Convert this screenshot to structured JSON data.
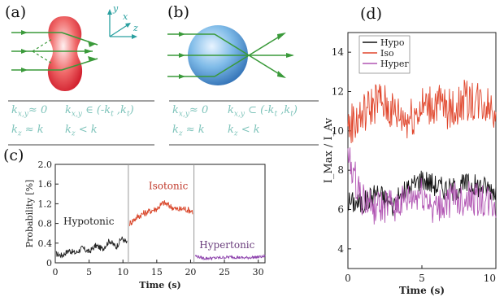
{
  "panels": {
    "a": {
      "label": "(a)",
      "axes": {
        "y": "y",
        "x": "x",
        "z": "z"
      },
      "row1": {
        "left": "k",
        "left_sub": "x,y",
        "left_rel": "≈ 0",
        "right": "k",
        "right_sub": "x,y",
        "right_rel": "∈ (-k",
        "right_sub2": "t",
        "right_mid": " ,k",
        "right_sub3": "t",
        "right_end": ")"
      },
      "row2": {
        "left": "k",
        "left_sub": "z",
        "left_rel": " ≈ k",
        "right": "k",
        "right_sub": "z",
        "right_rel": " < k"
      }
    },
    "b": {
      "label": "(b)",
      "row1": {
        "left": "k",
        "left_sub": "x,y",
        "left_rel": "≈ 0",
        "right": "k",
        "right_sub": "x,y",
        "right_rel": "⊂ (-k",
        "right_sub2": "t",
        "right_mid": " ,k",
        "right_sub3": "t",
        "right_end": ")"
      },
      "row2": {
        "left": "k",
        "left_sub": "z",
        "left_rel": " ≈ k",
        "right": "k",
        "right_sub": "z",
        "right_rel": " < k"
      }
    },
    "c": {
      "label": "(c)"
    },
    "d": {
      "label": "(d)"
    }
  },
  "chart_data": [
    {
      "id": "c",
      "type": "line",
      "xlabel": "Time (s)",
      "ylabel": "Probability [%]",
      "xlim": [
        0,
        31
      ],
      "ylim": [
        0,
        2.0
      ],
      "xticks": [
        "0",
        "5",
        "10",
        "15",
        "20",
        "25",
        "30"
      ],
      "yticks": [
        "0",
        "0.4",
        "0.8",
        "1.2",
        "1.6",
        "2.0"
      ],
      "dividers_x": [
        10.8,
        20.5
      ],
      "annotations": [
        {
          "text": "Hypotonic",
          "x": 1.2,
          "y": 0.78,
          "color": "#222222"
        },
        {
          "text": "Isotonic",
          "x": 13.8,
          "y": 1.5,
          "color": "#c0392b"
        },
        {
          "text": "Hypertonic",
          "x": 21.3,
          "y": 0.3,
          "color": "#6a3d7c"
        }
      ],
      "series": [
        {
          "color": "#222222",
          "x_start": 0.1,
          "x_end": 10.6,
          "points": [
            [
              0.1,
              0.18
            ],
            [
              1.0,
              0.15
            ],
            [
              2.0,
              0.25
            ],
            [
              3.0,
              0.2
            ],
            [
              4.0,
              0.3
            ],
            [
              5.0,
              0.22
            ],
            [
              6.0,
              0.35
            ],
            [
              7.0,
              0.28
            ],
            [
              8.0,
              0.45
            ],
            [
              9.0,
              0.32
            ],
            [
              9.8,
              0.5
            ],
            [
              10.6,
              0.4
            ]
          ],
          "noise": 0.06
        },
        {
          "color": "#d9472b",
          "x_start": 11.0,
          "x_end": 20.3,
          "points": [
            [
              11.0,
              0.8
            ],
            [
              12.0,
              0.92
            ],
            [
              13.0,
              1.0
            ],
            [
              14.0,
              1.05
            ],
            [
              15.0,
              1.1
            ],
            [
              16.0,
              1.22
            ],
            [
              17.0,
              1.15
            ],
            [
              18.0,
              1.08
            ],
            [
              19.0,
              1.1
            ],
            [
              20.3,
              1.05
            ]
          ],
          "noise": 0.07
        },
        {
          "color": "#8e44ad",
          "x_start": 20.7,
          "x_end": 31.0,
          "points": [
            [
              20.7,
              0.14
            ],
            [
              22.0,
              0.09
            ],
            [
              24.0,
              0.1
            ],
            [
              26.0,
              0.12
            ],
            [
              28.0,
              0.1
            ],
            [
              31.0,
              0.13
            ]
          ],
          "noise": 0.03
        }
      ]
    },
    {
      "id": "d",
      "type": "line",
      "xlabel": "Time (s)",
      "ylabel": "I_Max / I_Av",
      "xlim": [
        0,
        10
      ],
      "ylim": [
        3,
        15
      ],
      "xticks": [
        "0",
        "5",
        "10"
      ],
      "yticks": [
        "4",
        "6",
        "8",
        "10",
        "12",
        "14"
      ],
      "legend": {
        "placement": "top-left"
      },
      "series": [
        {
          "name": "Hypo",
          "color": "#111111",
          "points": [
            [
              0,
              6.4
            ],
            [
              1,
              6.3
            ],
            [
              2,
              6.9
            ],
            [
              3,
              6.2
            ],
            [
              4,
              7.0
            ],
            [
              5,
              7.6
            ],
            [
              6,
              7.2
            ],
            [
              7,
              7.0
            ],
            [
              8,
              7.3
            ],
            [
              9,
              7.2
            ],
            [
              10,
              7.0
            ]
          ],
          "noise": 0.6
        },
        {
          "name": "Iso",
          "color": "#e0452b",
          "points": [
            [
              0,
              10.2
            ],
            [
              1,
              10.8
            ],
            [
              2,
              11.6
            ],
            [
              3,
              11.0
            ],
            [
              4,
              10.6
            ],
            [
              5,
              11.2
            ],
            [
              6,
              11.4
            ],
            [
              7,
              11.0
            ],
            [
              8,
              11.6
            ],
            [
              9,
              11.5
            ],
            [
              10,
              11.2
            ]
          ],
          "noise": 1.1
        },
        {
          "name": "Hyper",
          "color": "#b155b3",
          "points": [
            [
              0,
              8.6
            ],
            [
              1,
              6.5
            ],
            [
              2,
              6.0
            ],
            [
              3,
              6.2
            ],
            [
              4,
              6.4
            ],
            [
              5,
              6.8
            ],
            [
              6,
              6.0
            ],
            [
              7,
              6.5
            ],
            [
              8,
              6.6
            ],
            [
              9,
              6.4
            ],
            [
              10,
              6.2
            ]
          ],
          "noise": 0.9
        }
      ]
    }
  ]
}
